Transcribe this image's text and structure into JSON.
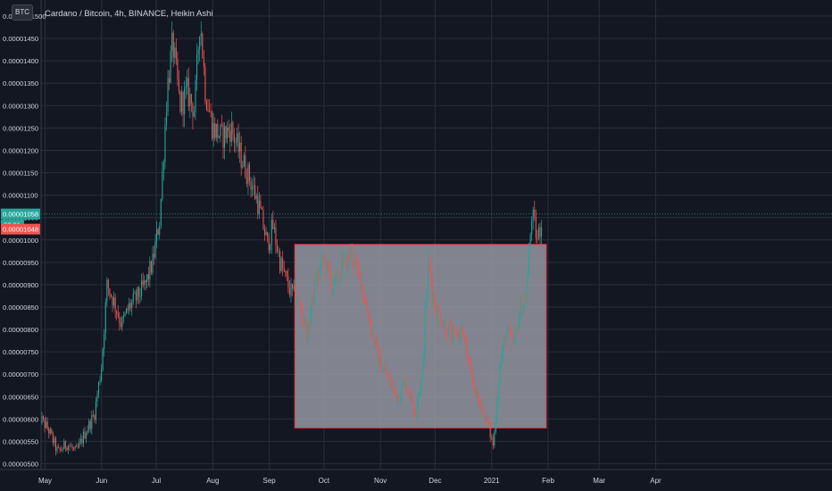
{
  "chart_title": "Cardano / Bitcoin, 4h, BINANCE, Heikin Ashi",
  "symbol_chip": "BTC",
  "top_tick_partial": "0.0000001500",
  "countdown": "32:31",
  "colors": {
    "background": "#131722",
    "up": "#26a69a",
    "down": "#ef5350",
    "grid": "#2a2e39",
    "axis_text": "#d1d4dc",
    "box_fill": "#9598a1",
    "box_border": "#f23645"
  },
  "chart_data": {
    "type": "candlestick",
    "title": "Cardano / Bitcoin, 4h, BINANCE, Heikin Ashi",
    "xlabel": "",
    "ylabel": "",
    "x_tick_labels": [
      "May",
      "Jun",
      "Jul",
      "Aug",
      "Sep",
      "Oct",
      "Nov",
      "Dec",
      "2021",
      "Feb",
      "Mar",
      "Apr"
    ],
    "y_tick_labels": [
      "0.00000500",
      "0.00000550",
      "0.00000600",
      "0.00000650",
      "0.00000700",
      "0.00000750",
      "0.00000800",
      "0.00000850",
      "0.00000900",
      "0.00000950",
      "0.00001000",
      "0.00001050",
      "0.00001100",
      "0.00001150",
      "0.00001200",
      "0.00001250",
      "0.00001300",
      "0.00001350",
      "0.00001400",
      "0.00001450",
      "0.00001500"
    ],
    "ylim": [
      5e-06,
      1.5e-05
    ],
    "price_labels": [
      {
        "value": 1.058e-05,
        "text": "0.00001058",
        "color": "#26a69a"
      },
      {
        "value": 1.048e-05,
        "text": "0.00001048",
        "color": "#ef5350"
      }
    ],
    "box": {
      "x_start": "2020-09-15",
      "x_end": "2021-01-31",
      "y_low": 5.8e-06,
      "y_high": 9.9e-06
    },
    "series_approx_path": [
      [
        "2020-04-27",
        6.1e-06
      ],
      [
        "2020-05-03",
        5.75e-06
      ],
      [
        "2020-05-08",
        5.25e-06
      ],
      [
        "2020-05-13",
        5.45e-06
      ],
      [
        "2020-05-18",
        5.25e-06
      ],
      [
        "2020-05-23",
        5.7e-06
      ],
      [
        "2020-05-28",
        6.1e-06
      ],
      [
        "2020-06-01",
        7.2e-06
      ],
      [
        "2020-06-04",
        9e-06
      ],
      [
        "2020-06-08",
        8.6e-06
      ],
      [
        "2020-06-12",
        8.1e-06
      ],
      [
        "2020-06-16",
        8.5e-06
      ],
      [
        "2020-06-20",
        8.7e-06
      ],
      [
        "2020-06-25",
        9e-06
      ],
      [
        "2020-06-29",
        9.5e-06
      ],
      [
        "2020-07-03",
        1.05e-05
      ],
      [
        "2020-07-07",
        1.34e-05
      ],
      [
        "2020-07-10",
        1.44e-05
      ],
      [
        "2020-07-14",
        1.3e-05
      ],
      [
        "2020-07-18",
        1.33e-05
      ],
      [
        "2020-07-22",
        1.29e-05
      ],
      [
        "2020-07-25",
        1.5e-05
      ],
      [
        "2020-07-28",
        1.33e-05
      ],
      [
        "2020-08-01",
        1.25e-05
      ],
      [
        "2020-08-06",
        1.23e-05
      ],
      [
        "2020-08-11",
        1.25e-05
      ],
      [
        "2020-08-16",
        1.19e-05
      ],
      [
        "2020-08-21",
        1.14e-05
      ],
      [
        "2020-08-26",
        1.08e-05
      ],
      [
        "2020-08-31",
        9.9e-06
      ],
      [
        "2020-09-03",
        1.03e-05
      ],
      [
        "2020-09-07",
        9.5e-06
      ],
      [
        "2020-09-12",
        8.9e-06
      ],
      [
        "2020-09-17",
        8.6e-06
      ],
      [
        "2020-09-22",
        7.9e-06
      ],
      [
        "2020-09-26",
        9e-06
      ],
      [
        "2020-10-01",
        9.6e-06
      ],
      [
        "2020-10-06",
        8.9e-06
      ],
      [
        "2020-10-11",
        9.4e-06
      ],
      [
        "2020-10-16",
        9.7e-06
      ],
      [
        "2020-10-21",
        9.1e-06
      ],
      [
        "2020-10-26",
        8.2e-06
      ],
      [
        "2020-10-31",
        7.3e-06
      ],
      [
        "2020-11-05",
        6.9e-06
      ],
      [
        "2020-11-10",
        6.5e-06
      ],
      [
        "2020-11-15",
        6.8e-06
      ],
      [
        "2020-11-20",
        6.2e-06
      ],
      [
        "2020-11-24",
        7e-06
      ],
      [
        "2020-11-27",
        9.5e-06
      ],
      [
        "2020-12-01",
        8.5e-06
      ],
      [
        "2020-12-06",
        8.1e-06
      ],
      [
        "2020-12-11",
        7.8e-06
      ],
      [
        "2020-12-16",
        8e-06
      ],
      [
        "2020-12-20",
        7e-06
      ],
      [
        "2020-12-25",
        6.4e-06
      ],
      [
        "2020-12-29",
        6e-06
      ],
      [
        "2021-01-02",
        5.4e-06
      ],
      [
        "2021-01-05",
        7e-06
      ],
      [
        "2021-01-09",
        8e-06
      ],
      [
        "2021-01-13",
        7.6e-06
      ],
      [
        "2021-01-17",
        8.5e-06
      ],
      [
        "2021-01-20",
        8.7e-06
      ],
      [
        "2021-01-23",
        1.06e-05
      ],
      [
        "2021-01-26",
        1e-05
      ],
      [
        "2021-01-29",
        1.05e-05
      ]
    ]
  }
}
